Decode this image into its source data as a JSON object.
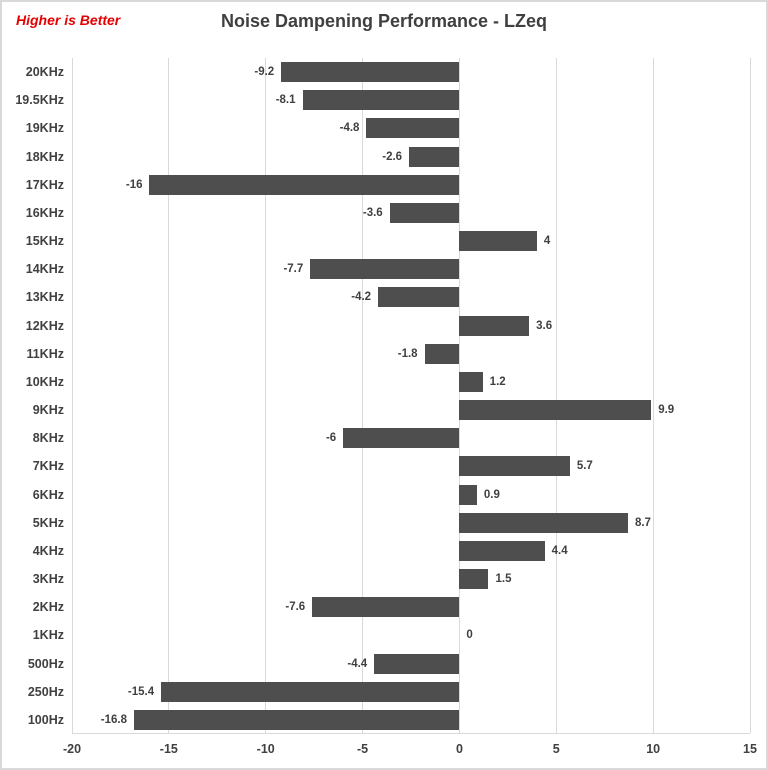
{
  "chart_data": {
    "type": "bar",
    "orientation": "horizontal",
    "title": "Noise Dampening Performance - LZeq",
    "annotation": "Higher is Better",
    "annotation_color": "#e60000",
    "categories": [
      "20KHz",
      "19.5KHz",
      "19KHz",
      "18KHz",
      "17KHz",
      "16KHz",
      "15KHz",
      "14KHz",
      "13KHz",
      "12KHz",
      "11KHz",
      "10KHz",
      "9KHz",
      "8KHz",
      "7KHz",
      "6KHz",
      "5KHz",
      "4KHz",
      "3KHz",
      "2KHz",
      "1KHz",
      "500Hz",
      "250Hz",
      "100Hz"
    ],
    "values": [
      -9.2,
      -8.1,
      -4.8,
      -2.6,
      -16,
      -3.6,
      4,
      -7.7,
      -4.2,
      3.6,
      -1.8,
      1.2,
      9.9,
      -6,
      5.7,
      0.9,
      8.7,
      4.4,
      1.5,
      -7.6,
      0,
      -4.4,
      -15.4,
      -16.8
    ],
    "value_labels": [
      "-9.2",
      "-8.1",
      "-4.8",
      "-2.6",
      "-16",
      "-3.6",
      "4",
      "-7.7",
      "-4.2",
      "3.6",
      "-1.8",
      "1.2",
      "9.9",
      "-6",
      "5.7",
      "0.9",
      "8.7",
      "4.4",
      "1.5",
      "-7.6",
      "0",
      "-4.4",
      "-15.4",
      "-16.8"
    ],
    "x_ticks": [
      -20,
      -15,
      -10,
      -5,
      0,
      5,
      10,
      15
    ],
    "x_tick_labels": [
      "-20",
      "-15",
      "-10",
      "-5",
      "0",
      "5",
      "10",
      "15"
    ],
    "xlim": [
      -20,
      15
    ],
    "bar_color": "#4e4e4e",
    "gridline_color": "#d9d9d9",
    "grid": "vertical-only",
    "legend": "none",
    "xlabel": "",
    "ylabel": ""
  }
}
